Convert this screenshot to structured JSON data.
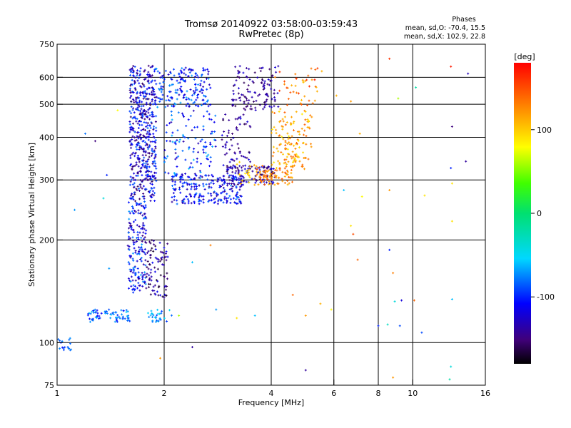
{
  "chart_data": {
    "type": "scatter",
    "title": "Tromsø 20140922 03:58:00-03:59:43",
    "subtitle": "RwPretec (8p)",
    "xlabel": "Frequency [MHz]",
    "ylabel": "Stationary phase Virtual Height [km]",
    "x_scale": "log",
    "y_scale": "log",
    "xlim": [
      1,
      16
    ],
    "ylim": [
      75,
      750
    ],
    "x_ticks": [
      1,
      2,
      4,
      6,
      8,
      10,
      16
    ],
    "y_ticks": [
      75,
      100,
      200,
      300,
      400,
      500,
      600,
      750
    ],
    "grid": true,
    "legend": {
      "title": "Phases",
      "lines": [
        "mean, sd,O: -70.4, 15.5",
        "mean, sd,X: 102.9, 22.8"
      ],
      "placement": "top-right"
    },
    "colorbar": {
      "label": "[deg]",
      "range": [
        -180,
        180
      ],
      "ticks": [
        100,
        0,
        -100
      ],
      "placement": "right"
    },
    "clusters": [
      {
        "x": [
          1.6,
          1.9
        ],
        "y": [
          260,
          650
        ],
        "phase": -120,
        "spread": 40,
        "count": 500
      },
      {
        "x": [
          1.58,
          1.78
        ],
        "y": [
          140,
          260
        ],
        "phase": -110,
        "spread": 40,
        "count": 180
      },
      {
        "x": [
          1.78,
          2.05
        ],
        "y": [
          135,
          200
        ],
        "phase": -140,
        "spread": 30,
        "count": 90
      },
      {
        "x": [
          1.22,
          1.6
        ],
        "y": [
          115,
          125
        ],
        "phase": -80,
        "spread": 30,
        "count": 70
      },
      {
        "x": [
          1.0,
          1.1
        ],
        "y": [
          95,
          103
        ],
        "phase": -90,
        "spread": 20,
        "count": 18
      },
      {
        "x": [
          1.8,
          2.1
        ],
        "y": [
          115,
          125
        ],
        "phase": -70,
        "spread": 25,
        "count": 30
      },
      {
        "x": [
          1.9,
          2.7
        ],
        "y": [
          490,
          640
        ],
        "phase": -100,
        "spread": 35,
        "count": 180
      },
      {
        "x": [
          2.1,
          3.3
        ],
        "y": [
          255,
          310
        ],
        "phase": -110,
        "spread": 35,
        "count": 220
      },
      {
        "x": [
          2.0,
          2.8
        ],
        "y": [
          300,
          480
        ],
        "phase": -100,
        "spread": 40,
        "count": 120
      },
      {
        "x": [
          3.0,
          4.1
        ],
        "y": [
          290,
          330
        ],
        "phase": -135,
        "spread": 25,
        "count": 110
      },
      {
        "x": [
          2.9,
          3.5
        ],
        "y": [
          310,
          470
        ],
        "phase": -140,
        "spread": 25,
        "count": 70
      },
      {
        "x": [
          3.1,
          4.2
        ],
        "y": [
          480,
          650
        ],
        "phase": -140,
        "spread": 20,
        "count": 120
      },
      {
        "x": [
          3.6,
          4.6
        ],
        "y": [
          290,
          330
        ],
        "phase": 130,
        "spread": 25,
        "count": 80
      },
      {
        "x": [
          4.0,
          5.2
        ],
        "y": [
          320,
          480
        ],
        "phase": 115,
        "spread": 30,
        "count": 140
      },
      {
        "x": [
          4.2,
          5.4
        ],
        "y": [
          480,
          640
        ],
        "phase": 130,
        "spread": 30,
        "count": 40
      },
      {
        "x": [
          3.1,
          3.6
        ],
        "y": [
          290,
          340
        ],
        "phase": 100,
        "spread": 20,
        "count": 20
      }
    ],
    "outliers": [
      {
        "x": 8.6,
        "y": 680,
        "phase": 160
      },
      {
        "x": 12.8,
        "y": 645,
        "phase": 170
      },
      {
        "x": 14.3,
        "y": 615,
        "phase": -130
      },
      {
        "x": 10.2,
        "y": 560,
        "phase": -20
      },
      {
        "x": 9.1,
        "y": 520,
        "phase": 60
      },
      {
        "x": 6.7,
        "y": 510,
        "phase": 120
      },
      {
        "x": 12.9,
        "y": 430,
        "phase": -150
      },
      {
        "x": 7.1,
        "y": 410,
        "phase": 110
      },
      {
        "x": 12.8,
        "y": 325,
        "phase": -100
      },
      {
        "x": 14.1,
        "y": 340,
        "phase": -140
      },
      {
        "x": 12.9,
        "y": 293,
        "phase": 90
      },
      {
        "x": 6.4,
        "y": 280,
        "phase": -60
      },
      {
        "x": 7.2,
        "y": 268,
        "phase": 80
      },
      {
        "x": 8.6,
        "y": 280,
        "phase": 120
      },
      {
        "x": 10.8,
        "y": 270,
        "phase": 90
      },
      {
        "x": 6.7,
        "y": 220,
        "phase": 90
      },
      {
        "x": 6.8,
        "y": 208,
        "phase": 150
      },
      {
        "x": 12.9,
        "y": 227,
        "phase": 90
      },
      {
        "x": 8.6,
        "y": 187,
        "phase": -100
      },
      {
        "x": 7.0,
        "y": 175,
        "phase": 140
      },
      {
        "x": 8.8,
        "y": 160,
        "phase": 130
      },
      {
        "x": 8.9,
        "y": 132,
        "phase": -40
      },
      {
        "x": 9.3,
        "y": 133,
        "phase": -120
      },
      {
        "x": 10.1,
        "y": 133,
        "phase": 140
      },
      {
        "x": 12.9,
        "y": 134,
        "phase": -60
      },
      {
        "x": 8.0,
        "y": 112,
        "phase": -100
      },
      {
        "x": 8.5,
        "y": 113,
        "phase": -30
      },
      {
        "x": 9.2,
        "y": 112,
        "phase": -90
      },
      {
        "x": 10.6,
        "y": 107,
        "phase": -90
      },
      {
        "x": 5.9,
        "y": 125,
        "phase": 80
      },
      {
        "x": 5.5,
        "y": 130,
        "phase": 110
      },
      {
        "x": 5.0,
        "y": 120,
        "phase": 120
      },
      {
        "x": 4.6,
        "y": 138,
        "phase": 140
      },
      {
        "x": 12.8,
        "y": 85,
        "phase": -40
      },
      {
        "x": 12.7,
        "y": 78,
        "phase": -20
      },
      {
        "x": 8.8,
        "y": 79,
        "phase": 120
      },
      {
        "x": 5.0,
        "y": 83,
        "phase": -140
      },
      {
        "x": 2.4,
        "y": 97,
        "phase": -140
      },
      {
        "x": 1.95,
        "y": 90,
        "phase": 120
      },
      {
        "x": 3.2,
        "y": 118,
        "phase": 90
      },
      {
        "x": 3.6,
        "y": 120,
        "phase": -60
      },
      {
        "x": 2.8,
        "y": 125,
        "phase": -70
      },
      {
        "x": 2.2,
        "y": 120,
        "phase": 60
      },
      {
        "x": 1.35,
        "y": 265,
        "phase": -40
      },
      {
        "x": 1.28,
        "y": 390,
        "phase": -150
      },
      {
        "x": 1.38,
        "y": 310,
        "phase": -100
      },
      {
        "x": 1.2,
        "y": 410,
        "phase": -80
      },
      {
        "x": 1.48,
        "y": 480,
        "phase": 80
      },
      {
        "x": 1.12,
        "y": 245,
        "phase": -70
      },
      {
        "x": 2.7,
        "y": 193,
        "phase": 130
      },
      {
        "x": 2.4,
        "y": 172,
        "phase": -60
      },
      {
        "x": 1.4,
        "y": 165,
        "phase": -70
      },
      {
        "x": 5.3,
        "y": 590,
        "phase": 170
      },
      {
        "x": 5.55,
        "y": 625,
        "phase": 110
      },
      {
        "x": 6.1,
        "y": 530,
        "phase": 110
      },
      {
        "x": 4.1,
        "y": 600,
        "phase": 130
      }
    ]
  }
}
